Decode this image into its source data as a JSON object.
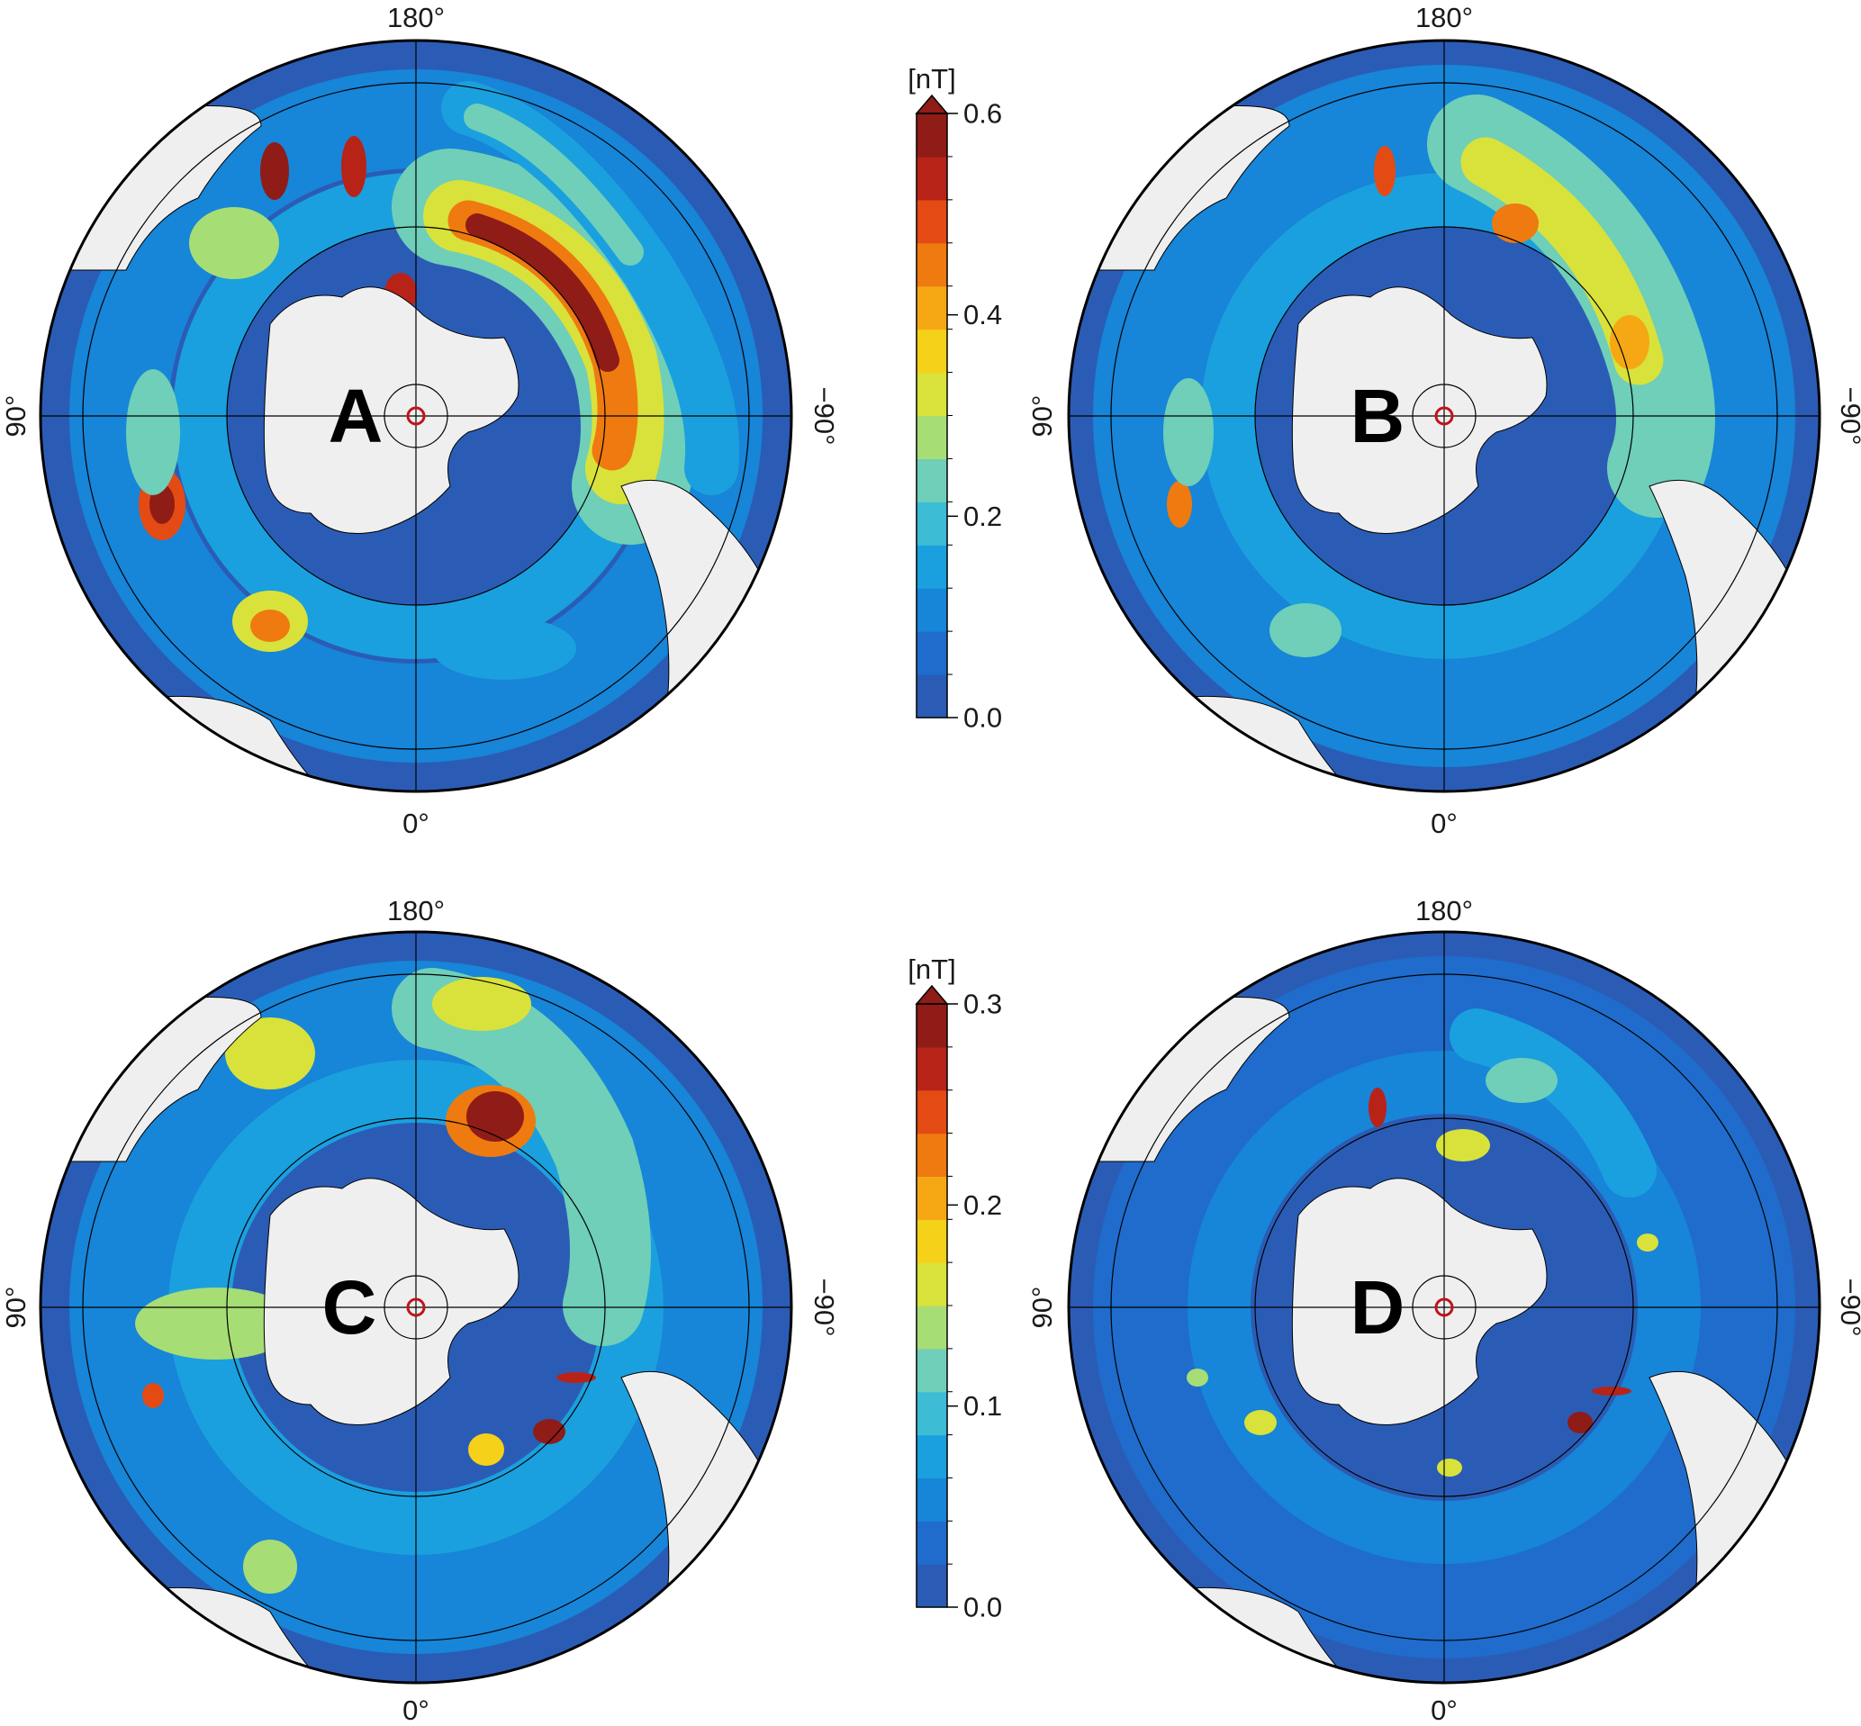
{
  "colors": {
    "levels": [
      "#2b5cb5",
      "#1f6ccc",
      "#1785d8",
      "#1aa0de",
      "#3dbcd6",
      "#6fcfb8",
      "#a7dd75",
      "#d9e23a",
      "#f6d11a",
      "#f5a814",
      "#ef7a10",
      "#e44b14",
      "#b82318",
      "#8f1c17"
    ],
    "land": "#efefef",
    "ocean_deep": "#2d58b0",
    "pole_marker": "#c0141c"
  },
  "panels": [
    {
      "id": "A",
      "letter": "A",
      "labels": {
        "top": "180°",
        "bottom": "0°",
        "left": "90°",
        "right": "−90°"
      },
      "colorscale": "top"
    },
    {
      "id": "B",
      "letter": "B",
      "labels": {
        "top": "180°",
        "bottom": "0°",
        "left": "90°",
        "right": "−90°"
      },
      "colorscale": "top"
    },
    {
      "id": "C",
      "letter": "C",
      "labels": {
        "top": "180°",
        "bottom": "0°",
        "left": "90°",
        "right": "−90°"
      },
      "colorscale": "bottom"
    },
    {
      "id": "D",
      "letter": "D",
      "labels": {
        "top": "180°",
        "bottom": "0°",
        "left": "90°",
        "right": "−90°"
      },
      "colorscale": "bottom"
    }
  ],
  "colorbars": [
    {
      "id": "top",
      "unit": "[nT]",
      "min": 0.0,
      "max": 0.6,
      "ticks": [
        "0.0",
        "0.2",
        "0.4",
        "0.6"
      ],
      "extend": "max"
    },
    {
      "id": "bottom",
      "unit": "[nT]",
      "min": 0.0,
      "max": 0.3,
      "ticks": [
        "0.0",
        "0.1",
        "0.2",
        "0.3"
      ],
      "extend": "max"
    }
  ]
}
